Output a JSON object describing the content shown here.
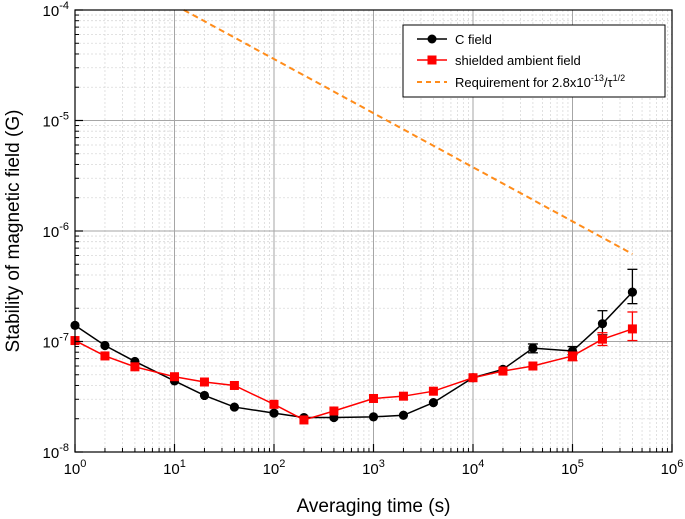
{
  "chart_data": {
    "type": "line",
    "xscale": "log",
    "yscale": "log",
    "xlabel": "Averaging time (s)",
    "ylabel": "Stability of magnetic field (G)",
    "xlim": [
      1,
      1000000
    ],
    "ylim": [
      1e-08,
      0.0001
    ],
    "grid": true,
    "legend_position": "top-right",
    "x_ticks": [
      {
        "value": 1,
        "base": "10",
        "exp": "0"
      },
      {
        "value": 10,
        "base": "10",
        "exp": "1"
      },
      {
        "value": 100,
        "base": "10",
        "exp": "2"
      },
      {
        "value": 1000,
        "base": "10",
        "exp": "3"
      },
      {
        "value": 10000,
        "base": "10",
        "exp": "4"
      },
      {
        "value": 100000,
        "base": "10",
        "exp": "5"
      },
      {
        "value": 1000000,
        "base": "10",
        "exp": "6"
      }
    ],
    "y_ticks": [
      {
        "value": 1e-08,
        "base": "10",
        "exp": "-8"
      },
      {
        "value": 1e-07,
        "base": "10",
        "exp": "-7"
      },
      {
        "value": 1e-06,
        "base": "10",
        "exp": "-6"
      },
      {
        "value": 1e-05,
        "base": "10",
        "exp": "-5"
      },
      {
        "value": 0.0001,
        "base": "10",
        "exp": "-4"
      }
    ],
    "series": [
      {
        "name": "C field",
        "color": "#000000",
        "marker": "circle",
        "x": [
          1,
          2,
          4,
          10,
          20,
          40,
          100,
          200,
          400,
          1000,
          2000,
          4000,
          10000,
          20000,
          40000,
          100000,
          200000,
          400000
        ],
        "y": [
          1.4e-07,
          9.2e-08,
          6.6e-08,
          4.4e-08,
          3.25e-08,
          2.55e-08,
          2.25e-08,
          2.05e-08,
          2.05e-08,
          2.08e-08,
          2.15e-08,
          2.8e-08,
          4.7e-08,
          5.6e-08,
          8.7e-08,
          8.2e-08,
          1.45e-07,
          2.8e-07
        ],
        "err_low": [
          null,
          null,
          null,
          null,
          null,
          null,
          null,
          null,
          null,
          null,
          null,
          null,
          null,
          null,
          7.9e-08,
          7.6e-08,
          1.15e-07,
          2.2e-07
        ],
        "err_high": [
          null,
          null,
          null,
          null,
          null,
          null,
          null,
          null,
          null,
          null,
          null,
          null,
          null,
          null,
          9.5e-08,
          9e-08,
          1.9e-07,
          4.5e-07
        ]
      },
      {
        "name": "shielded ambient field",
        "color": "#ff0000",
        "marker": "square",
        "x": [
          1,
          2,
          4,
          10,
          20,
          40,
          100,
          200,
          400,
          1000,
          2000,
          4000,
          10000,
          20000,
          40000,
          100000,
          200000,
          400000
        ],
        "y": [
          1.02e-07,
          7.4e-08,
          5.9e-08,
          4.8e-08,
          4.3e-08,
          4e-08,
          2.7e-08,
          1.95e-08,
          2.35e-08,
          3.05e-08,
          3.2e-08,
          3.55e-08,
          4.7e-08,
          5.4e-08,
          6e-08,
          7.4e-08,
          1.05e-07,
          1.3e-07
        ],
        "err_low": [
          null,
          null,
          null,
          null,
          null,
          null,
          null,
          null,
          null,
          null,
          null,
          null,
          null,
          null,
          null,
          6.7e-08,
          9.2e-08,
          1.02e-07
        ],
        "err_high": [
          null,
          null,
          null,
          null,
          null,
          null,
          null,
          null,
          null,
          null,
          null,
          null,
          null,
          null,
          null,
          8.1e-08,
          1.2e-07,
          1.85e-07
        ]
      },
      {
        "name_parts": [
          "Requirement for 2.8x10",
          "-13",
          "/τ",
          "1/2"
        ],
        "color": "#ff8c1a",
        "style": "dashed",
        "x": [
          12.4,
          400000
        ],
        "y": [
          0.0001,
          6.2e-07
        ]
      }
    ]
  }
}
